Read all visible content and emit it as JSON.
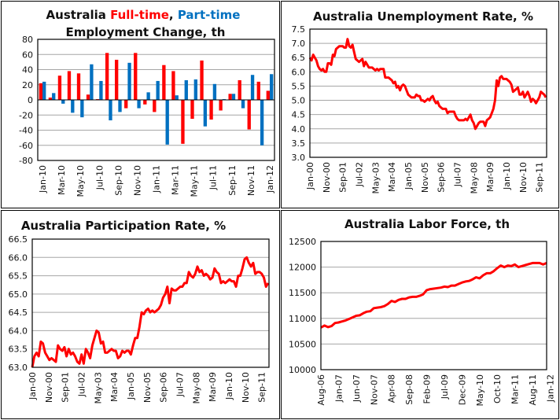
{
  "colors": {
    "full_time": "#ff0000",
    "part_time": "#0070c0",
    "line": "#ff0000",
    "grid": "#a6a6a6"
  },
  "chart_data": [
    {
      "id": "employment",
      "type": "bar",
      "title_parts": [
        "Australia ",
        "Full-time",
        ", ",
        "Part-time"
      ],
      "title_line2": "Employment Change, th",
      "xlabel": "",
      "ylabel": "",
      "ylim": [
        -80,
        80
      ],
      "yticks": [
        "-80",
        "-60",
        "-40",
        "-20",
        "0",
        "20",
        "40",
        "60",
        "80"
      ],
      "categories": [
        "Jan-10",
        "Feb-10",
        "Mar-10",
        "Apr-10",
        "May-10",
        "Jun-10",
        "Jul-10",
        "Aug-10",
        "Sep-10",
        "Oct-10",
        "Nov-10",
        "Dec-10",
        "Jan-11",
        "Feb-11",
        "Mar-11",
        "Apr-11",
        "May-11",
        "Jun-11",
        "Jul-11",
        "Aug-11",
        "Sep-11",
        "Oct-11",
        "Nov-11",
        "Dec-11",
        "Jan-12"
      ],
      "xtick_labels": [
        "Jan-10",
        "Mar-10",
        "May-10",
        "Jul-10",
        "Sep-10",
        "Nov-10",
        "Jan-11",
        "Mar-11",
        "May-11",
        "Jul-11",
        "Sep-11",
        "Nov-11",
        "Jan-12"
      ],
      "series": [
        {
          "name": "Full-time",
          "values": [
            22,
            3,
            32,
            38,
            35,
            7,
            1,
            62,
            53,
            -11,
            62,
            -6,
            -16,
            46,
            38,
            -58,
            -25,
            52,
            -26,
            -14,
            8,
            26,
            -39,
            24,
            12
          ]
        },
        {
          "name": "Part-time",
          "values": [
            24,
            9,
            -5,
            -17,
            -23,
            47,
            25,
            -27,
            -16,
            49,
            -11,
            10,
            25,
            -59,
            6,
            26,
            27,
            -35,
            21,
            1,
            8,
            -11,
            33,
            -60,
            34
          ]
        }
      ],
      "grid": true
    },
    {
      "id": "unemployment",
      "type": "line",
      "title": "Australia Unemployment Rate, %",
      "ylim": [
        3.0,
        7.5
      ],
      "yticks": [
        "3.0",
        "3.5",
        "4.0",
        "4.5",
        "5.0",
        "5.5",
        "6.0",
        "6.5",
        "7.0",
        "7.5"
      ],
      "x_range": [
        "Jan-00",
        "Jan-12"
      ],
      "xtick_labels": [
        "Jan-00",
        "Nov-00",
        "Sep-01",
        "Jul-02",
        "May-03",
        "Mar-04",
        "Jan-05",
        "Nov-05",
        "Sep-06",
        "Jul-07",
        "May-08",
        "Mar-09",
        "Jan-10",
        "Nov-10",
        "Sep-11"
      ],
      "series": [
        {
          "name": "Unemployment Rate",
          "values": [
            6.5,
            6.4,
            6.6,
            6.5,
            6.4,
            6.2,
            6.1,
            6.05,
            6.1,
            6.0,
            6.0,
            6.3,
            6.3,
            6.25,
            6.6,
            6.55,
            6.8,
            6.85,
            6.9,
            6.9,
            6.9,
            6.85,
            6.85,
            7.15,
            6.9,
            6.85,
            6.95,
            6.7,
            6.45,
            6.4,
            6.35,
            6.4,
            6.45,
            6.2,
            6.35,
            6.25,
            6.15,
            6.15,
            6.15,
            6.1,
            6.05,
            6.1,
            6.05,
            6.1,
            6.1,
            6.1,
            5.8,
            5.8,
            5.8,
            5.75,
            5.7,
            5.6,
            5.65,
            5.45,
            5.5,
            5.35,
            5.5,
            5.55,
            5.5,
            5.35,
            5.2,
            5.15,
            5.1,
            5.1,
            5.1,
            5.2,
            5.15,
            5.15,
            5.0,
            5.0,
            4.95,
            5.0,
            5.05,
            5.0,
            5.1,
            5.15,
            5.0,
            4.9,
            4.95,
            4.8,
            4.75,
            4.7,
            4.7,
            4.7,
            4.55,
            4.6,
            4.6,
            4.6,
            4.6,
            4.45,
            4.35,
            4.3,
            4.3,
            4.3,
            4.3,
            4.35,
            4.3,
            4.4,
            4.5,
            4.3,
            4.2,
            4.0,
            4.1,
            4.2,
            4.25,
            4.25,
            4.25,
            4.1,
            4.3,
            4.35,
            4.4,
            4.55,
            4.7,
            5.0,
            5.7,
            5.5,
            5.8,
            5.85,
            5.75,
            5.75,
            5.75,
            5.7,
            5.65,
            5.55,
            5.3,
            5.35,
            5.4,
            5.45,
            5.2,
            5.2,
            5.3,
            5.1,
            5.2,
            5.3,
            5.15,
            4.95,
            5.05,
            5.0,
            4.9,
            5.0,
            5.1,
            5.3,
            5.25,
            5.2,
            5.1
          ]
        }
      ],
      "grid": true
    },
    {
      "id": "participation",
      "type": "line",
      "title": "Australia Participation Rate, %",
      "ylim": [
        63.0,
        66.5
      ],
      "yticks": [
        "63.0",
        "63.5",
        "64.0",
        "64.5",
        "65.0",
        "65.5",
        "66.0",
        "66.5"
      ],
      "x_range": [
        "Jan-00",
        "Jan-12"
      ],
      "xtick_labels": [
        "Jan-00",
        "Nov-00",
        "Sep-01",
        "Jul-02",
        "May-03",
        "Mar-04",
        "Jan-05",
        "Nov-05",
        "Sep-06",
        "Jul-07",
        "May-08",
        "Mar-09",
        "Jan-10",
        "Nov-10",
        "Sep-11"
      ],
      "series": [
        {
          "name": "Participation Rate",
          "values": [
            63.0,
            63.3,
            63.4,
            63.3,
            63.7,
            63.65,
            63.4,
            63.3,
            63.2,
            63.25,
            63.2,
            63.15,
            63.6,
            63.5,
            63.45,
            63.55,
            63.3,
            63.5,
            63.35,
            63.4,
            63.3,
            63.15,
            63.1,
            63.35,
            63.1,
            63.5,
            63.4,
            63.25,
            63.6,
            63.8,
            64.0,
            63.95,
            63.65,
            63.7,
            63.4,
            63.4,
            63.45,
            63.5,
            63.45,
            63.45,
            63.25,
            63.3,
            63.45,
            63.4,
            63.45,
            63.45,
            63.35,
            63.6,
            63.8,
            63.8,
            64.1,
            64.5,
            64.45,
            64.55,
            64.6,
            64.5,
            64.55,
            64.5,
            64.55,
            64.6,
            64.7,
            64.9,
            65.0,
            65.2,
            64.75,
            65.15,
            65.1,
            65.1,
            65.15,
            65.2,
            65.2,
            65.3,
            65.3,
            65.6,
            65.5,
            65.45,
            65.55,
            65.75,
            65.6,
            65.65,
            65.5,
            65.55,
            65.5,
            65.4,
            65.45,
            65.7,
            65.6,
            65.55,
            65.3,
            65.35,
            65.3,
            65.35,
            65.4,
            65.35,
            65.35,
            65.2,
            65.5,
            65.5,
            65.7,
            65.95,
            66.0,
            65.85,
            65.75,
            65.85,
            65.55,
            65.6,
            65.6,
            65.55,
            65.45,
            65.2,
            65.3
          ]
        }
      ],
      "grid": true
    },
    {
      "id": "labor_force",
      "type": "line",
      "title": "Australia Labor Force, th",
      "ylim": [
        10000,
        12500
      ],
      "yticks": [
        "10000",
        "10500",
        "11000",
        "11500",
        "12000",
        "12500"
      ],
      "x_range": [
        "Aug-06",
        "Jan-12"
      ],
      "xtick_labels": [
        "Aug-06",
        "Jan-07",
        "Jun-07",
        "Nov-07",
        "Apr-08",
        "Sep-08",
        "Feb-09",
        "Jul-09",
        "Dec-09",
        "May-10",
        "Oct-10",
        "Mar-11",
        "Aug-11",
        "Jan-12"
      ],
      "series": [
        {
          "name": "Labor Force",
          "values": [
            10820,
            10860,
            10830,
            10850,
            10910,
            10920,
            10940,
            10960,
            10990,
            11020,
            11050,
            11060,
            11100,
            11130,
            11140,
            11200,
            11210,
            11220,
            11240,
            11280,
            11340,
            11320,
            11360,
            11380,
            11380,
            11410,
            11420,
            11420,
            11440,
            11470,
            11550,
            11570,
            11580,
            11590,
            11600,
            11620,
            11610,
            11640,
            11640,
            11670,
            11700,
            11720,
            11730,
            11760,
            11800,
            11780,
            11840,
            11880,
            11880,
            11920,
            11980,
            12030,
            12000,
            12030,
            12020,
            12050,
            12000,
            12020,
            12040,
            12060,
            12080,
            12080,
            12080,
            12050,
            12080
          ]
        }
      ],
      "grid": true
    }
  ]
}
